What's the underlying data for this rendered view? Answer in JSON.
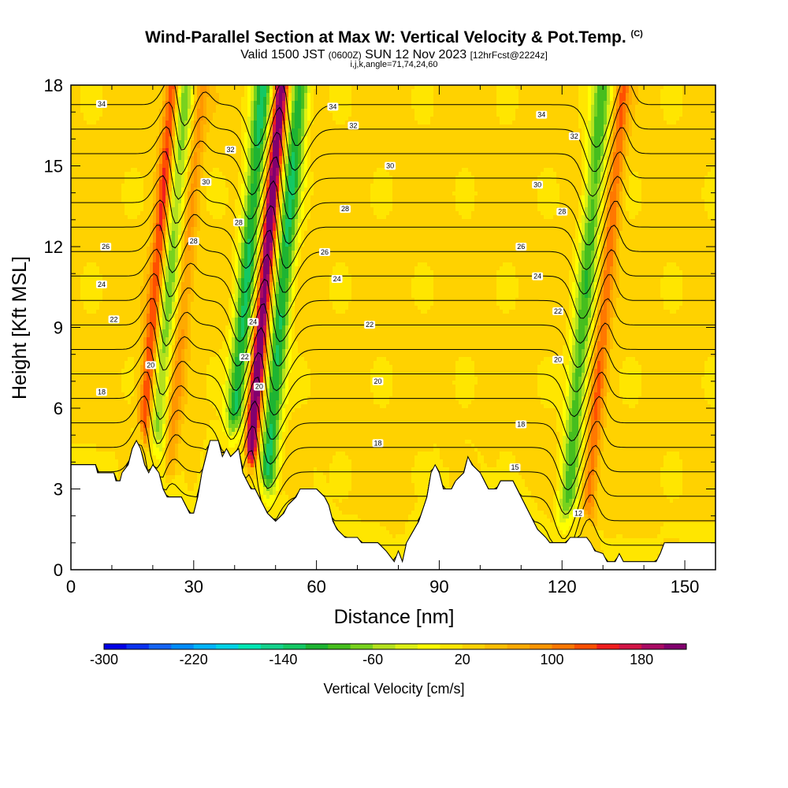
{
  "header": {
    "title": "Wind-Parallel Section at Max W: Vertical Velocity & Pot.Temp.",
    "copyright": "(C)",
    "valid_a": "Valid 1500 JST",
    "valid_z": "(0600Z)",
    "valid_b": "SUN 12 Nov 2023",
    "forecast": "[12hrFcst@2224z]",
    "indices": "i,j,k,angle=71,74,24,60"
  },
  "chart_data": {
    "type": "heatmap",
    "xlabel": "Distance [nm]",
    "ylabel": "Height [Kft MSL]",
    "xlim": [
      0,
      157.5
    ],
    "ylim": [
      0,
      18
    ],
    "xticks": [
      "0",
      "30",
      "60",
      "90",
      "120",
      "150"
    ],
    "yticks": [
      "0",
      "3",
      "6",
      "9",
      "12",
      "15",
      "18"
    ],
    "colorbar": {
      "label": "Vertical Velocity [cm/s]",
      "min": -300,
      "max": 220,
      "step": 20,
      "tick_labels": [
        "-300",
        "-220",
        "-140",
        "-60",
        "20",
        "100",
        "180"
      ],
      "colors": [
        "#0000e6",
        "#0a32f0",
        "#1464f5",
        "#008cff",
        "#00b4ff",
        "#00d2e6",
        "#00e6b4",
        "#14d28c",
        "#14c864",
        "#1eb432",
        "#46be1e",
        "#78d21e",
        "#b4e11e",
        "#dcf014",
        "#ffff00",
        "#ffe600",
        "#ffd200",
        "#ffbe00",
        "#ffaa00",
        "#ff9600",
        "#ff7800",
        "#ff5000",
        "#f01e1e",
        "#d21446",
        "#aa0a64",
        "#82006e"
      ]
    },
    "w_features_cm_s": [
      {
        "x": 20,
        "kind": "updraft",
        "peak": 130
      },
      {
        "x": 23,
        "kind": "downdraft",
        "peak": -100
      },
      {
        "x": 27,
        "kind": "updraft",
        "peak": 60
      },
      {
        "x": 42,
        "kind": "downdraft",
        "peak": -150
      },
      {
        "x": 46.5,
        "kind": "updraft",
        "peak": 210
      },
      {
        "x": 51,
        "kind": "downdraft",
        "peak": -150
      },
      {
        "x": 125,
        "kind": "downdraft",
        "peak": -120
      },
      {
        "x": 130,
        "kind": "updraft",
        "peak": 90
      }
    ],
    "terrain_kft": [
      [
        0,
        3.9
      ],
      [
        6,
        3.9
      ],
      [
        6.5,
        3.6
      ],
      [
        10.5,
        3.6
      ],
      [
        11,
        3.3
      ],
      [
        12,
        3.3
      ],
      [
        12.5,
        3.6
      ],
      [
        14,
        3.9
      ],
      [
        15,
        4.5
      ],
      [
        16,
        4.8
      ],
      [
        17,
        4.5
      ],
      [
        18,
        3.9
      ],
      [
        19,
        3.6
      ],
      [
        20,
        3.9
      ],
      [
        21.5,
        3.6
      ],
      [
        22.5,
        3.0
      ],
      [
        23.5,
        2.7
      ],
      [
        27,
        2.7
      ],
      [
        28,
        2.4
      ],
      [
        29,
        2.1
      ],
      [
        30,
        2.1
      ],
      [
        31,
        2.7
      ],
      [
        32,
        3.6
      ],
      [
        33,
        4.2
      ],
      [
        34,
        4.8
      ],
      [
        36,
        4.8
      ],
      [
        37,
        4.2
      ],
      [
        38,
        4.5
      ],
      [
        39,
        4.2
      ],
      [
        41,
        4.5
      ],
      [
        42,
        3.6
      ],
      [
        43,
        3.3
      ],
      [
        44,
        3.0
      ],
      [
        45,
        3.0
      ],
      [
        46,
        2.7
      ],
      [
        47,
        2.4
      ],
      [
        48,
        2.1
      ],
      [
        50,
        1.8
      ],
      [
        52,
        2.1
      ],
      [
        53,
        2.4
      ],
      [
        55,
        2.7
      ],
      [
        56,
        3.0
      ],
      [
        60,
        3.0
      ],
      [
        62,
        2.7
      ],
      [
        63,
        2.4
      ],
      [
        64,
        1.8
      ],
      [
        65,
        1.5
      ],
      [
        67,
        1.2
      ],
      [
        70,
        1.2
      ],
      [
        71,
        1.0
      ],
      [
        75,
        1.0
      ],
      [
        77,
        0.7
      ],
      [
        78,
        0.5
      ],
      [
        79,
        0.3
      ],
      [
        80,
        0.7
      ],
      [
        81,
        0.3
      ],
      [
        82,
        1.0
      ],
      [
        85,
        1.8
      ],
      [
        87,
        2.7
      ],
      [
        88,
        3.6
      ],
      [
        89,
        3.9
      ],
      [
        90,
        3.6
      ],
      [
        91,
        3.0
      ],
      [
        93,
        3.0
      ],
      [
        94,
        3.3
      ],
      [
        96,
        3.6
      ],
      [
        97,
        4.2
      ],
      [
        98,
        3.9
      ],
      [
        100,
        3.6
      ],
      [
        101,
        3.3
      ],
      [
        102,
        3.0
      ],
      [
        104,
        3.0
      ],
      [
        105,
        3.3
      ],
      [
        108,
        3.3
      ],
      [
        109,
        3.0
      ],
      [
        110,
        2.7
      ],
      [
        112,
        2.1
      ],
      [
        114,
        1.5
      ],
      [
        116,
        1.2
      ],
      [
        117,
        1.0
      ],
      [
        121,
        1.0
      ],
      [
        122,
        1.2
      ],
      [
        126,
        1.2
      ],
      [
        127,
        1.0
      ],
      [
        128,
        0.7
      ],
      [
        130,
        0.6
      ],
      [
        131,
        0.3
      ],
      [
        133,
        0.3
      ],
      [
        134,
        0.6
      ],
      [
        135,
        0.3
      ],
      [
        143,
        0.3
      ],
      [
        144,
        0.6
      ],
      [
        145,
        1.0
      ],
      [
        157.5,
        1.0
      ]
    ],
    "isentrope_labels": [
      {
        "x": 7.5,
        "y": 17.3,
        "text": "34"
      },
      {
        "x": 39,
        "y": 15.6,
        "text": "32"
      },
      {
        "x": 33,
        "y": 14.4,
        "text": "30"
      },
      {
        "x": 30,
        "y": 12.2,
        "text": "28"
      },
      {
        "x": 8.5,
        "y": 12.0,
        "text": "26"
      },
      {
        "x": 7.5,
        "y": 10.6,
        "text": "24"
      },
      {
        "x": 10.5,
        "y": 9.3,
        "text": "22"
      },
      {
        "x": 19.5,
        "y": 7.6,
        "text": "20"
      },
      {
        "x": 7.5,
        "y": 6.6,
        "text": "18"
      },
      {
        "x": 41,
        "y": 12.9,
        "text": "28"
      },
      {
        "x": 44.5,
        "y": 9.2,
        "text": "24"
      },
      {
        "x": 42.5,
        "y": 7.9,
        "text": "22"
      },
      {
        "x": 46,
        "y": 6.8,
        "text": "20"
      },
      {
        "x": 64,
        "y": 17.2,
        "text": "34"
      },
      {
        "x": 69,
        "y": 16.5,
        "text": "32"
      },
      {
        "x": 78,
        "y": 15.0,
        "text": "30"
      },
      {
        "x": 67,
        "y": 13.4,
        "text": "28"
      },
      {
        "x": 62,
        "y": 11.8,
        "text": "26"
      },
      {
        "x": 65,
        "y": 10.8,
        "text": "24"
      },
      {
        "x": 73,
        "y": 9.1,
        "text": "22"
      },
      {
        "x": 75,
        "y": 7.0,
        "text": "20"
      },
      {
        "x": 75,
        "y": 4.7,
        "text": "18"
      },
      {
        "x": 115,
        "y": 16.9,
        "text": "34"
      },
      {
        "x": 123,
        "y": 16.1,
        "text": "32"
      },
      {
        "x": 114,
        "y": 14.3,
        "text": "30"
      },
      {
        "x": 120,
        "y": 13.3,
        "text": "28"
      },
      {
        "x": 110,
        "y": 12.0,
        "text": "26"
      },
      {
        "x": 114,
        "y": 10.9,
        "text": "24"
      },
      {
        "x": 119,
        "y": 9.6,
        "text": "22"
      },
      {
        "x": 119,
        "y": 7.8,
        "text": "20"
      },
      {
        "x": 110,
        "y": 5.4,
        "text": "18"
      },
      {
        "x": 108.5,
        "y": 3.8,
        "text": "15"
      },
      {
        "x": 124,
        "y": 2.1,
        "text": "12"
      }
    ]
  }
}
